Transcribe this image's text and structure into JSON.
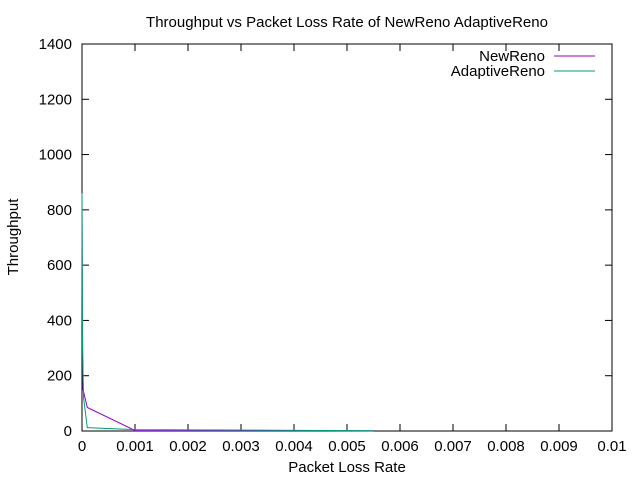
{
  "chart_data": {
    "type": "line",
    "title": "Throughput vs Packet Loss Rate of NewReno  AdaptiveReno",
    "xlabel": "Packet Loss Rate",
    "ylabel": "Throughput",
    "xlim": [
      0,
      0.01
    ],
    "ylim": [
      0,
      1400
    ],
    "x_ticks": [
      "0",
      "0.001",
      "0.002",
      "0.003",
      "0.004",
      "0.005",
      "0.006",
      "0.007",
      "0.008",
      "0.009",
      "0.01"
    ],
    "y_ticks": [
      "0",
      "200",
      "400",
      "600",
      "800",
      "1000",
      "1200",
      "1400"
    ],
    "legend_position": "top-right",
    "grid": false,
    "series": [
      {
        "name": "NewReno",
        "color": "#9400d3",
        "points": [
          [
            0.0,
            850
          ],
          [
            1e-05,
            340
          ],
          [
            2e-05,
            150
          ],
          [
            0.0001,
            85
          ],
          [
            0.001,
            2
          ],
          [
            0.0055,
            1
          ]
        ]
      },
      {
        "name": "AdaptiveReno",
        "color": "#009e73",
        "points": [
          [
            0.0,
            860
          ],
          [
            1e-05,
            300
          ],
          [
            3e-05,
            120
          ],
          [
            0.0001,
            12
          ],
          [
            0.001,
            5
          ],
          [
            0.0055,
            1
          ]
        ]
      }
    ]
  }
}
